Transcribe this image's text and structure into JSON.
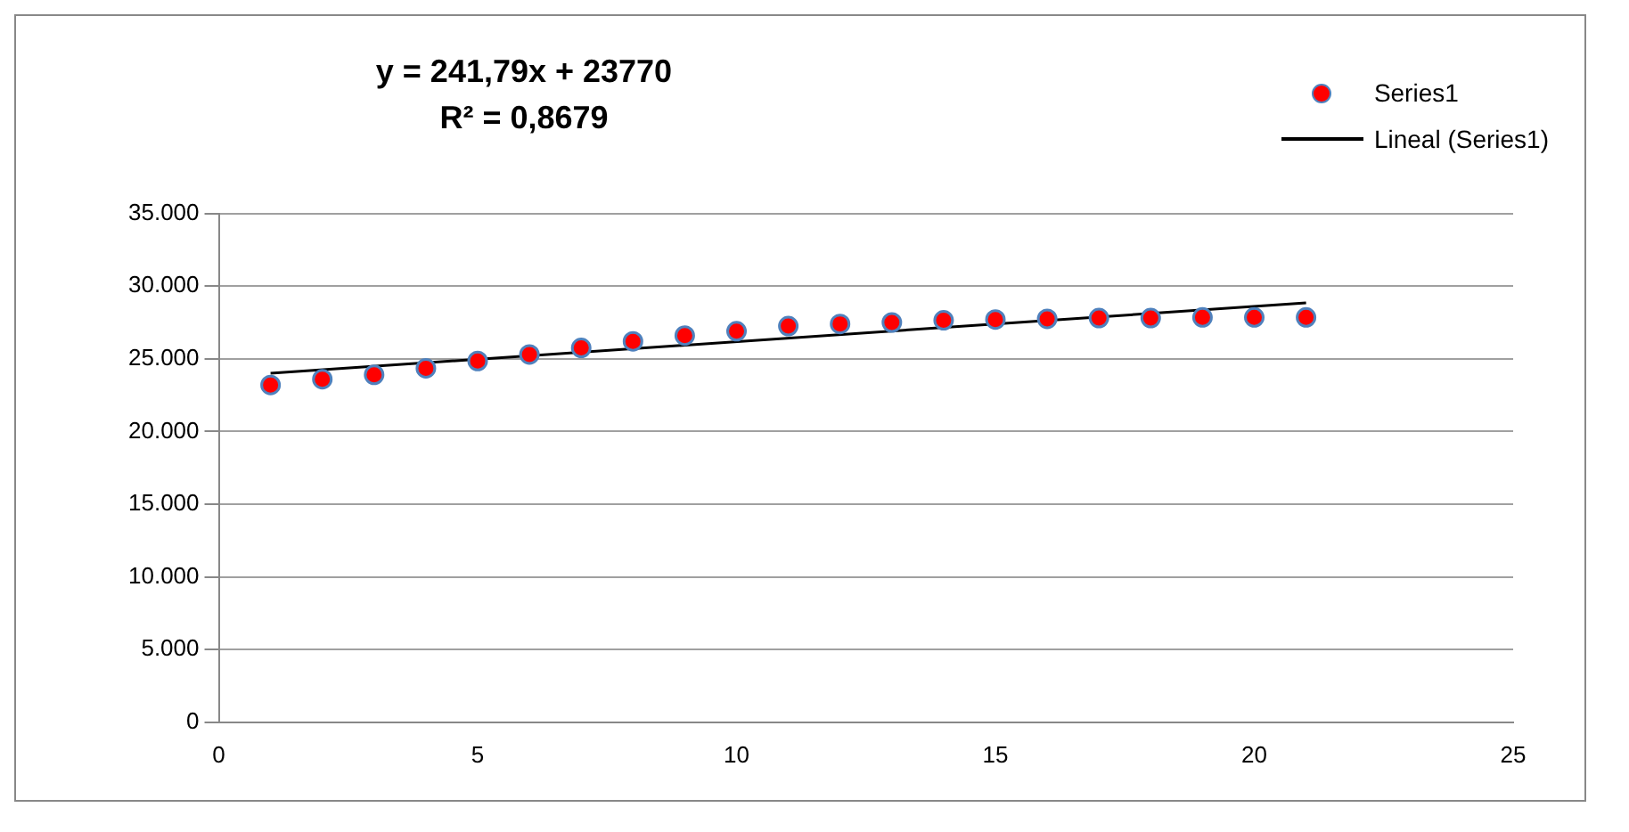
{
  "chart_data": {
    "type": "scatter",
    "x": [
      1,
      2,
      3,
      4,
      5,
      6,
      7,
      8,
      9,
      10,
      11,
      12,
      13,
      14,
      15,
      16,
      17,
      18,
      19,
      20,
      21
    ],
    "series": [
      {
        "name": "Series1",
        "color": "#ff0000",
        "marker": "circle",
        "values": [
          23200,
          23600,
          23900,
          24350,
          24850,
          25300,
          25750,
          26200,
          26600,
          26900,
          27250,
          27400,
          27500,
          27650,
          27700,
          27750,
          27800,
          27800,
          27850,
          27850,
          27850
        ]
      },
      {
        "name": "Lineal (Series1)",
        "type": "line",
        "color": "#000000",
        "line_style": "solid",
        "marker": "none",
        "x": [
          1,
          21
        ],
        "values": [
          24000,
          28850
        ]
      }
    ],
    "xlim": [
      0,
      25
    ],
    "xticks": [
      0,
      5,
      10,
      15,
      20,
      25
    ],
    "ylim": [
      0,
      35000
    ],
    "yticks": [
      0,
      {
        "value": 5000,
        "label": "5.000"
      },
      {
        "value": 10000,
        "label": "10.000"
      },
      {
        "value": 15000,
        "label": "15.000"
      },
      {
        "value": 20000,
        "label": "20.000"
      },
      {
        "value": 25000,
        "label": "25.000"
      },
      {
        "value": 30000,
        "label": "30.000"
      },
      {
        "value": 35000,
        "label": "35.000"
      }
    ],
    "grid": "y",
    "legend": "top right",
    "annotations": [
      "y = 241,79x + 23770",
      "R² = 0,8679"
    ]
  }
}
